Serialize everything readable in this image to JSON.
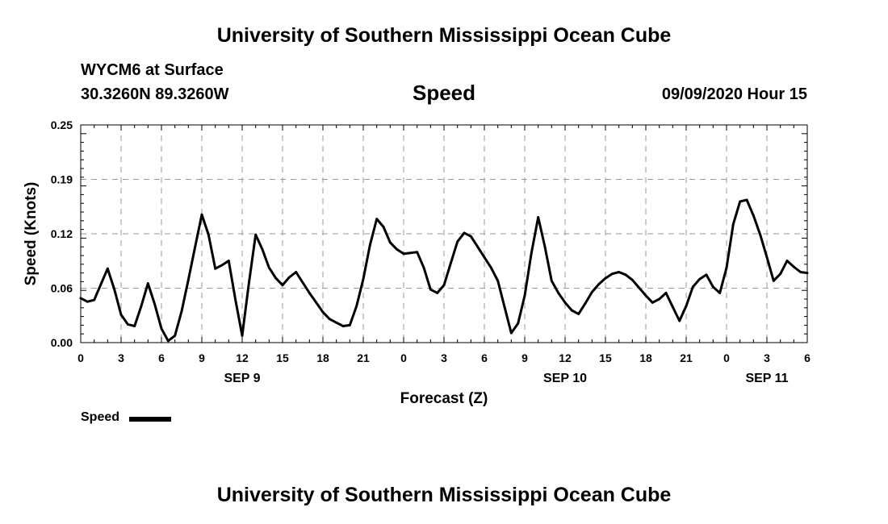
{
  "header": {
    "title": "University of Southern Mississippi Ocean Cube",
    "station": "WYCM6 at Surface",
    "coords": "30.3260N 89.3260W",
    "variable": "Speed",
    "datetime": "09/09/2020 Hour 15"
  },
  "footer": {
    "title": "University of Southern Mississippi Ocean Cube"
  },
  "legend": {
    "label": "Speed",
    "color": "#000000"
  },
  "chart_data": {
    "type": "line",
    "title": "Speed",
    "xlabel": "Forecast (Z)",
    "ylabel": "Speed (Knots)",
    "ylim": [
      0,
      0.25
    ],
    "xlim": [
      0,
      54
    ],
    "x_unit": "hours since 2020-09-09 00Z",
    "yticks": [
      "0.00",
      "0.06",
      "0.12",
      "0.19",
      "0.25"
    ],
    "ytick_values": [
      0,
      0.0625,
      0.125,
      0.1875,
      0.25
    ],
    "xticks": [
      "0",
      "3",
      "6",
      "9",
      "12",
      "15",
      "18",
      "21",
      "0",
      "3",
      "6",
      "9",
      "12",
      "15",
      "18",
      "21",
      "0",
      "3",
      "6"
    ],
    "day_labels": [
      {
        "label": "SEP 9",
        "at": 12
      },
      {
        "label": "SEP 10",
        "at": 36
      },
      {
        "label": "SEP 11",
        "at": 51
      }
    ],
    "grid": true,
    "series": [
      {
        "name": "Speed",
        "color": "#000000",
        "x": [
          0,
          0.5,
          1,
          1.5,
          2,
          2.5,
          3,
          3.5,
          4,
          4.5,
          5,
          5.5,
          6,
          6.5,
          7,
          7.5,
          8,
          8.5,
          9,
          9.5,
          10,
          10.5,
          11,
          11.5,
          12,
          12.5,
          13,
          13.5,
          14,
          14.5,
          15,
          15.5,
          16,
          16.5,
          17,
          17.5,
          18,
          18.5,
          19,
          19.5,
          20,
          20.5,
          21,
          21.5,
          22,
          22.5,
          23,
          23.5,
          24,
          24.5,
          25,
          25.5,
          26,
          26.5,
          27,
          27.5,
          28,
          28.5,
          29,
          29.5,
          30,
          30.5,
          31,
          31.5,
          32,
          32.5,
          33,
          33.5,
          34,
          34.5,
          35,
          35.5,
          36,
          36.5,
          37,
          37.5,
          38,
          38.5,
          39,
          39.5,
          40,
          40.5,
          41,
          41.5,
          42,
          42.5,
          43,
          43.5,
          44,
          44.5,
          45,
          45.5,
          46,
          46.5,
          47,
          47.5,
          48,
          48.5,
          49,
          49.5,
          50,
          50.5,
          51,
          51.5,
          52,
          52.5,
          53,
          53.5,
          54
        ],
        "values": [
          0.051,
          0.047,
          0.049,
          0.067,
          0.085,
          0.061,
          0.032,
          0.021,
          0.019,
          0.042,
          0.068,
          0.044,
          0.016,
          0.002,
          0.008,
          0.036,
          0.072,
          0.11,
          0.147,
          0.124,
          0.085,
          0.089,
          0.094,
          0.049,
          0.008,
          0.068,
          0.124,
          0.107,
          0.086,
          0.074,
          0.066,
          0.075,
          0.081,
          0.069,
          0.057,
          0.046,
          0.035,
          0.027,
          0.023,
          0.019,
          0.02,
          0.042,
          0.073,
          0.112,
          0.142,
          0.133,
          0.115,
          0.107,
          0.102,
          0.103,
          0.104,
          0.086,
          0.061,
          0.057,
          0.066,
          0.091,
          0.116,
          0.126,
          0.122,
          0.11,
          0.098,
          0.086,
          0.071,
          0.041,
          0.011,
          0.022,
          0.054,
          0.103,
          0.144,
          0.11,
          0.071,
          0.057,
          0.046,
          0.037,
          0.033,
          0.045,
          0.058,
          0.067,
          0.074,
          0.079,
          0.081,
          0.078,
          0.072,
          0.063,
          0.054,
          0.046,
          0.05,
          0.057,
          0.041,
          0.025,
          0.042,
          0.064,
          0.073,
          0.078,
          0.064,
          0.057,
          0.086,
          0.136,
          0.162,
          0.164,
          0.146,
          0.124,
          0.098,
          0.071,
          0.079,
          0.094,
          0.087,
          0.081,
          0.08
        ]
      }
    ]
  }
}
